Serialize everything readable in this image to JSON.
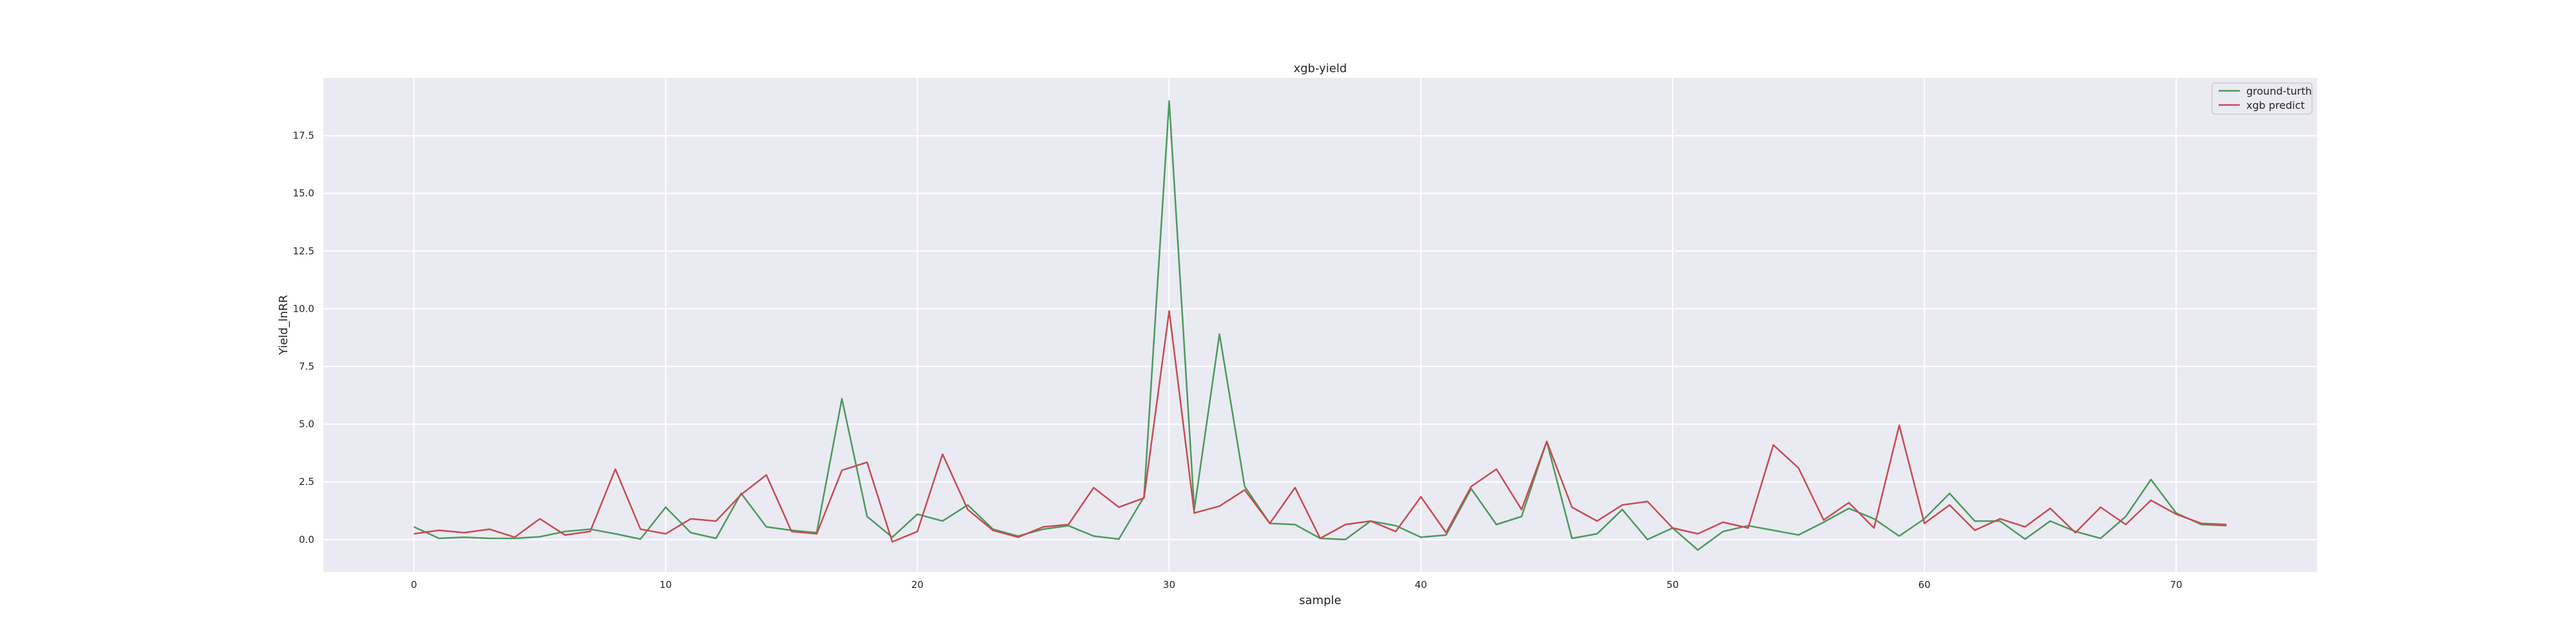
{
  "chart_data": {
    "type": "line",
    "title": "xgb-yield",
    "xlabel": "sample",
    "ylabel": "Yield_lnRR",
    "xlim": [
      -3.6,
      75.6
    ],
    "ylim": [
      -1.4,
      20.0
    ],
    "xticks": [
      0,
      10,
      20,
      30,
      40,
      50,
      60,
      70
    ],
    "xtick_labels": [
      "0",
      "10",
      "20",
      "30",
      "40",
      "50",
      "60",
      "70"
    ],
    "yticks": [
      0.0,
      2.5,
      5.0,
      7.5,
      10.0,
      12.5,
      15.0,
      17.5
    ],
    "ytick_labels": [
      "0.0",
      "2.5",
      "5.0",
      "7.5",
      "10.0",
      "12.5",
      "15.0",
      "17.5"
    ],
    "grid": true,
    "legend_position": "top-right",
    "x": [
      0,
      1,
      2,
      3,
      4,
      5,
      6,
      7,
      8,
      9,
      10,
      11,
      12,
      13,
      14,
      15,
      16,
      17,
      18,
      19,
      20,
      21,
      22,
      23,
      24,
      25,
      26,
      27,
      28,
      29,
      30,
      31,
      32,
      33,
      34,
      35,
      36,
      37,
      38,
      39,
      40,
      41,
      42,
      43,
      44,
      45,
      46,
      47,
      48,
      49,
      50,
      51,
      52,
      53,
      54,
      55,
      56,
      57,
      58,
      59,
      60,
      61,
      62,
      63,
      64,
      65,
      66,
      67,
      68,
      69,
      70,
      71,
      72
    ],
    "series": [
      {
        "name": "ground-turth",
        "color": "#4c9a5c",
        "values": [
          0.55,
          0.05,
          0.1,
          0.05,
          0.05,
          0.12,
          0.35,
          0.45,
          0.25,
          0.02,
          1.4,
          0.3,
          0.05,
          2.0,
          0.55,
          0.4,
          0.3,
          6.1,
          1.0,
          0.1,
          1.1,
          0.8,
          1.5,
          0.45,
          0.15,
          0.45,
          0.6,
          0.15,
          0.02,
          1.85,
          19.0,
          1.3,
          8.9,
          2.3,
          0.7,
          0.65,
          0.05,
          0.0,
          0.8,
          0.6,
          0.1,
          0.2,
          2.2,
          0.65,
          1.0,
          4.25,
          0.05,
          0.25,
          1.3,
          0.0,
          0.5,
          -0.45,
          0.35,
          0.6,
          0.4,
          0.2,
          0.75,
          1.35,
          0.9,
          0.15,
          0.9,
          2.0,
          0.8,
          0.8,
          0.02,
          0.8,
          0.35,
          0.05,
          1.0,
          2.6,
          1.15,
          0.65,
          0.6
        ]
      },
      {
        "name": "xgb predict",
        "color": "#c44e52",
        "values": [
          0.25,
          0.4,
          0.3,
          0.45,
          0.1,
          0.9,
          0.2,
          0.35,
          3.05,
          0.45,
          0.25,
          0.9,
          0.8,
          1.95,
          2.8,
          0.35,
          0.25,
          3.0,
          3.35,
          -0.1,
          0.35,
          3.7,
          1.3,
          0.4,
          0.1,
          0.55,
          0.65,
          2.25,
          1.4,
          1.8,
          9.9,
          1.15,
          1.45,
          2.15,
          0.7,
          2.25,
          0.05,
          0.65,
          0.8,
          0.35,
          1.85,
          0.3,
          2.3,
          3.05,
          1.3,
          4.25,
          1.4,
          0.8,
          1.5,
          1.65,
          0.5,
          0.25,
          0.75,
          0.5,
          4.1,
          3.1,
          0.85,
          1.6,
          0.5,
          4.95,
          0.7,
          1.5,
          0.4,
          0.9,
          0.55,
          1.35,
          0.3,
          1.4,
          0.65,
          1.7,
          1.1,
          0.7,
          0.65
        ]
      }
    ]
  }
}
